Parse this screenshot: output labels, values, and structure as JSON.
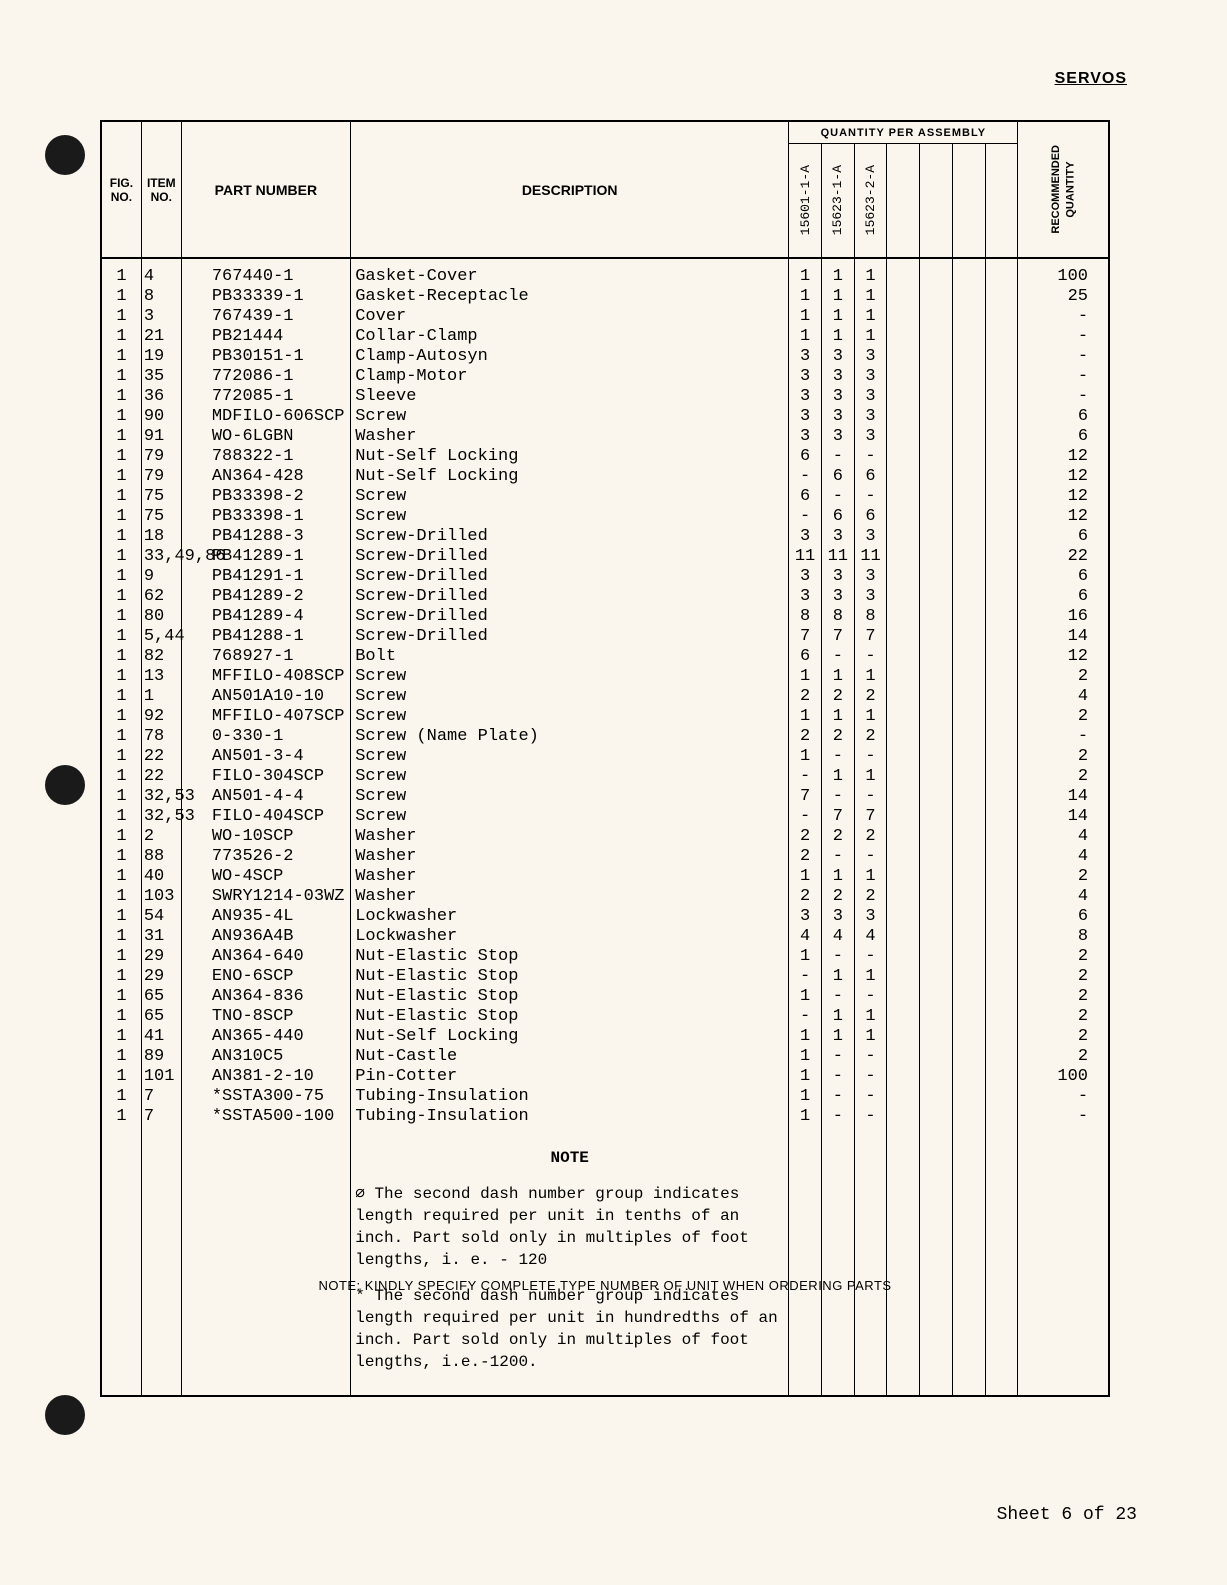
{
  "header_label": "SERVOS",
  "columns": {
    "figno": "FIG.\nNO.",
    "itemno": "ITEM\nNO.",
    "partno": "PART NUMBER",
    "desc": "DESCRIPTION",
    "qpa_title": "QUANTITY PER ASSEMBLY",
    "qpa": [
      "15601-1-A",
      "15623-1-A",
      "15623-2-A",
      "",
      "",
      "",
      ""
    ],
    "recq": "RECOMMENDED\nQUANTITY"
  },
  "rows": [
    {
      "fig": "1",
      "item": "4",
      "part": "767440-1",
      "desc": "Gasket-Cover",
      "q": [
        "1",
        "1",
        "1",
        "",
        "",
        "",
        ""
      ],
      "rec": "100"
    },
    {
      "fig": "1",
      "item": "8",
      "part": "PB33339-1",
      "desc": "Gasket-Receptacle",
      "q": [
        "1",
        "1",
        "1",
        "",
        "",
        "",
        ""
      ],
      "rec": "25"
    },
    {
      "fig": "1",
      "item": "3",
      "part": "767439-1",
      "desc": "Cover",
      "q": [
        "1",
        "1",
        "1",
        "",
        "",
        "",
        ""
      ],
      "rec": "-"
    },
    {
      "fig": "1",
      "item": "21",
      "part": "PB21444",
      "desc": "Collar-Clamp",
      "q": [
        "1",
        "1",
        "1",
        "",
        "",
        "",
        ""
      ],
      "rec": "-"
    },
    {
      "fig": "1",
      "item": "19",
      "part": "PB30151-1",
      "desc": "Clamp-Autosyn",
      "q": [
        "3",
        "3",
        "3",
        "",
        "",
        "",
        ""
      ],
      "rec": "-"
    },
    {
      "fig": "1",
      "item": "35",
      "part": "772086-1",
      "desc": "Clamp-Motor",
      "q": [
        "3",
        "3",
        "3",
        "",
        "",
        "",
        ""
      ],
      "rec": "-"
    },
    {
      "fig": "1",
      "item": "36",
      "part": "772085-1",
      "desc": "Sleeve",
      "q": [
        "3",
        "3",
        "3",
        "",
        "",
        "",
        ""
      ],
      "rec": "-"
    },
    {
      "fig": "1",
      "item": "90",
      "part": "MDFILO-606SCP",
      "desc": "Screw",
      "q": [
        "3",
        "3",
        "3",
        "",
        "",
        "",
        ""
      ],
      "rec": "6"
    },
    {
      "fig": "1",
      "item": "91",
      "part": "WO-6LGBN",
      "desc": "Washer",
      "q": [
        "3",
        "3",
        "3",
        "",
        "",
        "",
        ""
      ],
      "rec": "6"
    },
    {
      "fig": "1",
      "item": "79",
      "part": "788322-1",
      "desc": "Nut-Self Locking",
      "q": [
        "6",
        "-",
        "-",
        "",
        "",
        "",
        ""
      ],
      "rec": "12"
    },
    {
      "fig": "1",
      "item": "79",
      "part": "AN364-428",
      "desc": "Nut-Self Locking",
      "q": [
        "-",
        "6",
        "6",
        "",
        "",
        "",
        ""
      ],
      "rec": "12"
    },
    {
      "fig": "1",
      "item": "75",
      "part": "PB33398-2",
      "desc": "Screw",
      "q": [
        "6",
        "-",
        "-",
        "",
        "",
        "",
        ""
      ],
      "rec": "12"
    },
    {
      "fig": "1",
      "item": "75",
      "part": "PB33398-1",
      "desc": "Screw",
      "q": [
        "-",
        "6",
        "6",
        "",
        "",
        "",
        ""
      ],
      "rec": "12"
    },
    {
      "fig": "1",
      "item": "18",
      "part": "PB41288-3",
      "desc": "Screw-Drilled",
      "q": [
        "3",
        "3",
        "3",
        "",
        "",
        "",
        ""
      ],
      "rec": "6"
    },
    {
      "fig": "1",
      "item": "33,49,86",
      "part": "PB41289-1",
      "desc": "Screw-Drilled",
      "q": [
        "11",
        "11",
        "11",
        "",
        "",
        "",
        ""
      ],
      "rec": "22"
    },
    {
      "fig": "1",
      "item": "9",
      "part": "PB41291-1",
      "desc": "Screw-Drilled",
      "q": [
        "3",
        "3",
        "3",
        "",
        "",
        "",
        ""
      ],
      "rec": "6"
    },
    {
      "fig": "1",
      "item": "62",
      "part": "PB41289-2",
      "desc": "Screw-Drilled",
      "q": [
        "3",
        "3",
        "3",
        "",
        "",
        "",
        ""
      ],
      "rec": "6"
    },
    {
      "fig": "1",
      "item": "80",
      "part": "PB41289-4",
      "desc": "Screw-Drilled",
      "q": [
        "8",
        "8",
        "8",
        "",
        "",
        "",
        ""
      ],
      "rec": "16"
    },
    {
      "fig": "1",
      "item": "5,44",
      "part": "PB41288-1",
      "desc": "Screw-Drilled",
      "q": [
        "7",
        "7",
        "7",
        "",
        "",
        "",
        ""
      ],
      "rec": "14"
    },
    {
      "fig": "1",
      "item": "82",
      "part": "768927-1",
      "desc": "Bolt",
      "q": [
        "6",
        "-",
        "-",
        "",
        "",
        "",
        ""
      ],
      "rec": "12"
    },
    {
      "fig": "1",
      "item": "13",
      "part": "MFFILO-408SCP",
      "desc": "Screw",
      "q": [
        "1",
        "1",
        "1",
        "",
        "",
        "",
        ""
      ],
      "rec": "2"
    },
    {
      "fig": "1",
      "item": "1",
      "part": "AN501A10-10",
      "desc": "Screw",
      "q": [
        "2",
        "2",
        "2",
        "",
        "",
        "",
        ""
      ],
      "rec": "4"
    },
    {
      "fig": "1",
      "item": "92",
      "part": "MFFILO-407SCP",
      "desc": "Screw",
      "q": [
        "1",
        "1",
        "1",
        "",
        "",
        "",
        ""
      ],
      "rec": "2"
    },
    {
      "fig": "1",
      "item": "78",
      "part": "0-330-1",
      "desc": "Screw (Name Plate)",
      "q": [
        "2",
        "2",
        "2",
        "",
        "",
        "",
        ""
      ],
      "rec": "-"
    },
    {
      "fig": "1",
      "item": "22",
      "part": "AN501-3-4",
      "desc": "Screw",
      "q": [
        "1",
        "-",
        "-",
        "",
        "",
        "",
        ""
      ],
      "rec": "2"
    },
    {
      "fig": "1",
      "item": "22",
      "part": "FILO-304SCP",
      "desc": "Screw",
      "q": [
        "-",
        "1",
        "1",
        "",
        "",
        "",
        ""
      ],
      "rec": "2"
    },
    {
      "fig": "1",
      "item": "32,53",
      "part": "AN501-4-4",
      "desc": "Screw",
      "q": [
        "7",
        "-",
        "-",
        "",
        "",
        "",
        ""
      ],
      "rec": "14"
    },
    {
      "fig": "1",
      "item": "32,53",
      "part": "FILO-404SCP",
      "desc": "Screw",
      "q": [
        "-",
        "7",
        "7",
        "",
        "",
        "",
        ""
      ],
      "rec": "14"
    },
    {
      "fig": "1",
      "item": "2",
      "part": "WO-10SCP",
      "desc": "Washer",
      "q": [
        "2",
        "2",
        "2",
        "",
        "",
        "",
        ""
      ],
      "rec": "4"
    },
    {
      "fig": "1",
      "item": "88",
      "part": "773526-2",
      "desc": "Washer",
      "q": [
        "2",
        "-",
        "-",
        "",
        "",
        "",
        ""
      ],
      "rec": "4"
    },
    {
      "fig": "1",
      "item": "40",
      "part": "WO-4SCP",
      "desc": "Washer",
      "q": [
        "1",
        "1",
        "1",
        "",
        "",
        "",
        ""
      ],
      "rec": "2"
    },
    {
      "fig": "1",
      "item": "103",
      "part": "SWRY1214-03WZ",
      "desc": "Washer",
      "q": [
        "2",
        "2",
        "2",
        "",
        "",
        "",
        ""
      ],
      "rec": "4"
    },
    {
      "fig": "1",
      "item": "54",
      "part": "AN935-4L",
      "desc": "Lockwasher",
      "q": [
        "3",
        "3",
        "3",
        "",
        "",
        "",
        ""
      ],
      "rec": "6"
    },
    {
      "fig": "1",
      "item": "31",
      "part": "AN936A4B",
      "desc": "Lockwasher",
      "q": [
        "4",
        "4",
        "4",
        "",
        "",
        "",
        ""
      ],
      "rec": "8"
    },
    {
      "fig": "1",
      "item": "29",
      "part": "AN364-640",
      "desc": "Nut-Elastic Stop",
      "q": [
        "1",
        "-",
        "-",
        "",
        "",
        "",
        ""
      ],
      "rec": "2"
    },
    {
      "fig": "1",
      "item": "29",
      "part": "ENO-6SCP",
      "desc": "Nut-Elastic Stop",
      "q": [
        "-",
        "1",
        "1",
        "",
        "",
        "",
        ""
      ],
      "rec": "2"
    },
    {
      "fig": "1",
      "item": "65",
      "part": "AN364-836",
      "desc": "Nut-Elastic Stop",
      "q": [
        "1",
        "-",
        "-",
        "",
        "",
        "",
        ""
      ],
      "rec": "2"
    },
    {
      "fig": "1",
      "item": "65",
      "part": "TNO-8SCP",
      "desc": "Nut-Elastic Stop",
      "q": [
        "-",
        "1",
        "1",
        "",
        "",
        "",
        ""
      ],
      "rec": "2"
    },
    {
      "fig": "1",
      "item": "41",
      "part": "AN365-440",
      "desc": "Nut-Self Locking",
      "q": [
        "1",
        "1",
        "1",
        "",
        "",
        "",
        ""
      ],
      "rec": "2"
    },
    {
      "fig": "1",
      "item": "89",
      "part": "AN310C5",
      "desc": "Nut-Castle",
      "q": [
        "1",
        "-",
        "-",
        "",
        "",
        "",
        ""
      ],
      "rec": "2"
    },
    {
      "fig": "1",
      "item": "101",
      "part": "AN381-2-10",
      "desc": "Pin-Cotter",
      "q": [
        "1",
        "-",
        "-",
        "",
        "",
        "",
        ""
      ],
      "rec": "100"
    },
    {
      "fig": "1",
      "item": "7",
      "part": "*SSTA300-75",
      "desc": "Tubing-Insulation",
      "q": [
        "1",
        "-",
        "-",
        "",
        "",
        "",
        ""
      ],
      "rec": "-"
    },
    {
      "fig": "1",
      "item": "7",
      "part": "*SSTA500-100",
      "desc": "Tubing-Insulation",
      "q": [
        "1",
        "-",
        "-",
        "",
        "",
        "",
        ""
      ],
      "rec": "-"
    }
  ],
  "note": {
    "title": "NOTE",
    "para1": "∅ The second dash number group indicates length required per unit in tenths of an inch. Part sold only in multiples of foot lengths, i. e. - 120",
    "para2": "* The second dash number group indicates length required per unit in hundredths of an inch. Part sold only in multiples of foot lengths, i.e.-1200."
  },
  "footer_note": "NOTE: KINDLY SPECIFY COMPLETE TYPE NUMBER OF UNIT WHEN ORDERING PARTS",
  "sheet": "Sheet 6 of 23"
}
